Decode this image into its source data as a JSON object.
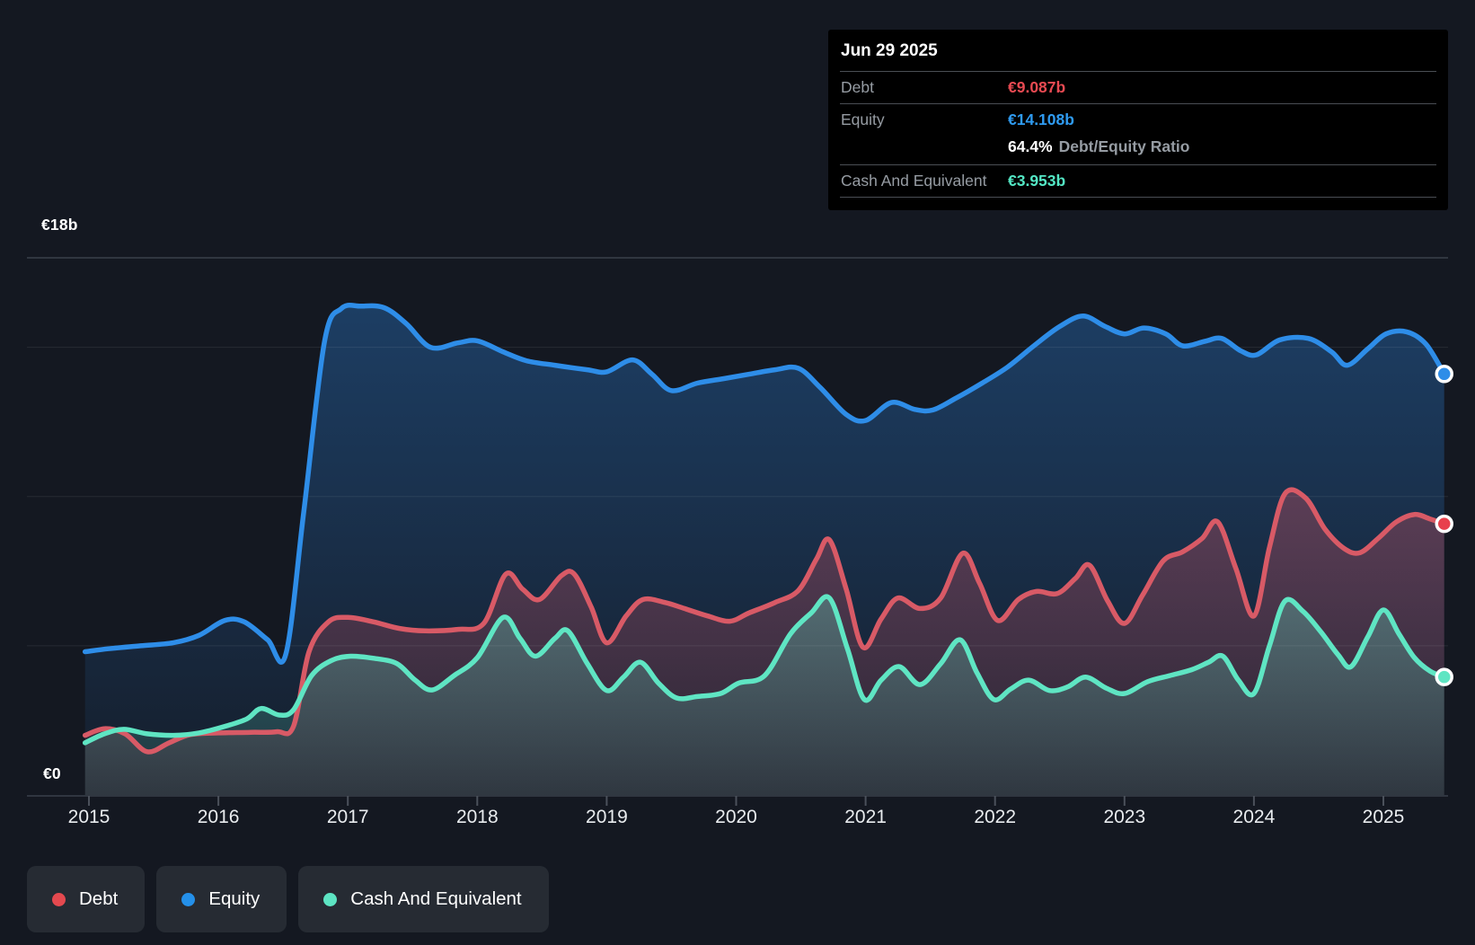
{
  "axis": {
    "y_top_label": "€18b",
    "y_zero_label": "€0",
    "x_ticks": [
      "2015",
      "2016",
      "2017",
      "2018",
      "2019",
      "2020",
      "2021",
      "2022",
      "2023",
      "2024",
      "2025"
    ]
  },
  "tooltip": {
    "date": "Jun 29 2025",
    "rows": [
      {
        "label": "Debt",
        "value": "€9.087b",
        "color": "#e84a52"
      },
      {
        "label": "Equity",
        "value": "€14.108b",
        "color": "#2f9bf1"
      }
    ],
    "ratio": {
      "value": "64.4%",
      "label": "Debt/Equity Ratio"
    },
    "cash_row": {
      "label": "Cash And Equivalent",
      "value": "€3.953b",
      "color": "#53e6c4"
    }
  },
  "legend": [
    {
      "label": "Debt",
      "color": "#e4494f"
    },
    {
      "label": "Equity",
      "color": "#2490ea"
    },
    {
      "label": "Cash And Equivalent",
      "color": "#5de4c3"
    }
  ],
  "colors": {
    "background": "#141821",
    "gridline_faint": "rgba(255,255,255,0.08)",
    "gridline_strong": "#3a414b",
    "tick": "#4b515b"
  },
  "chart_data": {
    "type": "area",
    "title": "",
    "xlabel": "",
    "ylabel": "",
    "x_domain": [
      2014.97,
      2025.47
    ],
    "y_domain": [
      0,
      18
    ],
    "y_unit": "billions EUR",
    "y_gridlines": [
      5,
      10,
      15
    ],
    "y_top_gridline": 18,
    "grid": true,
    "legend_position": "bottom-left",
    "series": [
      {
        "name": "Equity",
        "color": "#2e8de8",
        "point_color": "#2e8de8",
        "fill_top": "rgba(45,135,228,0.34)",
        "fill_bottom": "rgba(45,135,228,0.05)",
        "end_value": 14.108,
        "points": [
          [
            2014.97,
            4.8
          ],
          [
            2015.15,
            4.9
          ],
          [
            2015.4,
            5.0
          ],
          [
            2015.65,
            5.1
          ],
          [
            2015.85,
            5.35
          ],
          [
            2016.05,
            5.85
          ],
          [
            2016.2,
            5.8
          ],
          [
            2016.38,
            5.2
          ],
          [
            2016.52,
            4.7
          ],
          [
            2016.66,
            9.5
          ],
          [
            2016.82,
            15.2
          ],
          [
            2016.95,
            16.3
          ],
          [
            2017.1,
            16.38
          ],
          [
            2017.28,
            16.33
          ],
          [
            2017.45,
            15.8
          ],
          [
            2017.64,
            15.0
          ],
          [
            2017.85,
            15.15
          ],
          [
            2018.0,
            15.22
          ],
          [
            2018.2,
            14.85
          ],
          [
            2018.38,
            14.55
          ],
          [
            2018.6,
            14.4
          ],
          [
            2018.85,
            14.25
          ],
          [
            2019.0,
            14.18
          ],
          [
            2019.2,
            14.58
          ],
          [
            2019.35,
            14.1
          ],
          [
            2019.5,
            13.55
          ],
          [
            2019.7,
            13.8
          ],
          [
            2019.9,
            13.95
          ],
          [
            2020.1,
            14.1
          ],
          [
            2020.3,
            14.25
          ],
          [
            2020.48,
            14.3
          ],
          [
            2020.65,
            13.65
          ],
          [
            2020.85,
            12.75
          ],
          [
            2021.0,
            12.55
          ],
          [
            2021.2,
            13.15
          ],
          [
            2021.38,
            12.92
          ],
          [
            2021.52,
            12.9
          ],
          [
            2021.7,
            13.3
          ],
          [
            2021.9,
            13.8
          ],
          [
            2022.1,
            14.35
          ],
          [
            2022.3,
            15.05
          ],
          [
            2022.5,
            15.7
          ],
          [
            2022.68,
            16.05
          ],
          [
            2022.85,
            15.7
          ],
          [
            2023.0,
            15.45
          ],
          [
            2023.15,
            15.65
          ],
          [
            2023.32,
            15.45
          ],
          [
            2023.45,
            15.05
          ],
          [
            2023.62,
            15.2
          ],
          [
            2023.75,
            15.3
          ],
          [
            2023.9,
            14.88
          ],
          [
            2024.02,
            14.75
          ],
          [
            2024.2,
            15.25
          ],
          [
            2024.42,
            15.3
          ],
          [
            2024.6,
            14.85
          ],
          [
            2024.72,
            14.4
          ],
          [
            2024.88,
            14.95
          ],
          [
            2025.02,
            15.45
          ],
          [
            2025.18,
            15.52
          ],
          [
            2025.33,
            15.1
          ],
          [
            2025.47,
            14.108
          ]
        ]
      },
      {
        "name": "Debt",
        "color": "#d85a66",
        "point_color": "#e8404d",
        "fill_top": "rgba(220,85,100,0.34)",
        "fill_bottom": "rgba(220,85,100,0.10)",
        "end_value": 9.087,
        "points": [
          [
            2014.97,
            2.0
          ],
          [
            2015.12,
            2.22
          ],
          [
            2015.28,
            2.05
          ],
          [
            2015.45,
            1.45
          ],
          [
            2015.62,
            1.75
          ],
          [
            2015.78,
            2.02
          ],
          [
            2016.0,
            2.08
          ],
          [
            2016.25,
            2.1
          ],
          [
            2016.45,
            2.12
          ],
          [
            2016.58,
            2.3
          ],
          [
            2016.7,
            4.8
          ],
          [
            2016.85,
            5.8
          ],
          [
            2017.0,
            5.95
          ],
          [
            2017.2,
            5.8
          ],
          [
            2017.4,
            5.58
          ],
          [
            2017.6,
            5.5
          ],
          [
            2017.85,
            5.55
          ],
          [
            2018.05,
            5.75
          ],
          [
            2018.22,
            7.4
          ],
          [
            2018.35,
            6.9
          ],
          [
            2018.48,
            6.55
          ],
          [
            2018.65,
            7.35
          ],
          [
            2018.75,
            7.4
          ],
          [
            2018.88,
            6.3
          ],
          [
            2019.0,
            5.1
          ],
          [
            2019.15,
            6.0
          ],
          [
            2019.28,
            6.55
          ],
          [
            2019.45,
            6.45
          ],
          [
            2019.6,
            6.25
          ],
          [
            2019.78,
            6.0
          ],
          [
            2019.95,
            5.82
          ],
          [
            2020.1,
            6.1
          ],
          [
            2020.3,
            6.45
          ],
          [
            2020.48,
            6.85
          ],
          [
            2020.62,
            7.9
          ],
          [
            2020.72,
            8.55
          ],
          [
            2020.85,
            6.9
          ],
          [
            2020.98,
            4.95
          ],
          [
            2021.12,
            5.9
          ],
          [
            2021.25,
            6.6
          ],
          [
            2021.42,
            6.25
          ],
          [
            2021.58,
            6.6
          ],
          [
            2021.75,
            8.1
          ],
          [
            2021.88,
            7.1
          ],
          [
            2022.02,
            5.85
          ],
          [
            2022.18,
            6.55
          ],
          [
            2022.32,
            6.82
          ],
          [
            2022.48,
            6.75
          ],
          [
            2022.62,
            7.25
          ],
          [
            2022.73,
            7.7
          ],
          [
            2022.87,
            6.5
          ],
          [
            2023.0,
            5.75
          ],
          [
            2023.14,
            6.7
          ],
          [
            2023.3,
            7.85
          ],
          [
            2023.45,
            8.15
          ],
          [
            2023.6,
            8.6
          ],
          [
            2023.72,
            9.15
          ],
          [
            2023.86,
            7.6
          ],
          [
            2024.0,
            6.0
          ],
          [
            2024.12,
            8.3
          ],
          [
            2024.24,
            10.1
          ],
          [
            2024.4,
            9.95
          ],
          [
            2024.55,
            8.9
          ],
          [
            2024.7,
            8.25
          ],
          [
            2024.82,
            8.12
          ],
          [
            2024.96,
            8.6
          ],
          [
            2025.1,
            9.15
          ],
          [
            2025.24,
            9.4
          ],
          [
            2025.36,
            9.25
          ],
          [
            2025.47,
            9.087
          ]
        ]
      },
      {
        "name": "Cash And Equivalent",
        "color": "#5fe5c3",
        "point_color": "#5fe5c3",
        "fill_top": "rgba(100,232,202,0.30)",
        "fill_bottom": "rgba(100,232,202,0.10)",
        "end_value": 3.953,
        "points": [
          [
            2014.97,
            1.75
          ],
          [
            2015.12,
            2.05
          ],
          [
            2015.27,
            2.2
          ],
          [
            2015.45,
            2.05
          ],
          [
            2015.65,
            2.0
          ],
          [
            2015.85,
            2.08
          ],
          [
            2016.05,
            2.3
          ],
          [
            2016.22,
            2.55
          ],
          [
            2016.33,
            2.9
          ],
          [
            2016.47,
            2.68
          ],
          [
            2016.58,
            2.85
          ],
          [
            2016.72,
            4.0
          ],
          [
            2016.87,
            4.5
          ],
          [
            2017.02,
            4.65
          ],
          [
            2017.2,
            4.58
          ],
          [
            2017.38,
            4.4
          ],
          [
            2017.52,
            3.85
          ],
          [
            2017.65,
            3.52
          ],
          [
            2017.82,
            4.0
          ],
          [
            2018.0,
            4.6
          ],
          [
            2018.2,
            5.95
          ],
          [
            2018.33,
            5.25
          ],
          [
            2018.45,
            4.65
          ],
          [
            2018.6,
            5.25
          ],
          [
            2018.7,
            5.5
          ],
          [
            2018.85,
            4.4
          ],
          [
            2019.0,
            3.5
          ],
          [
            2019.13,
            3.95
          ],
          [
            2019.26,
            4.45
          ],
          [
            2019.4,
            3.75
          ],
          [
            2019.54,
            3.25
          ],
          [
            2019.7,
            3.3
          ],
          [
            2019.88,
            3.4
          ],
          [
            2020.02,
            3.75
          ],
          [
            2020.22,
            4.0
          ],
          [
            2020.42,
            5.4
          ],
          [
            2020.58,
            6.1
          ],
          [
            2020.72,
            6.6
          ],
          [
            2020.86,
            4.9
          ],
          [
            2020.99,
            3.2
          ],
          [
            2021.12,
            3.85
          ],
          [
            2021.26,
            4.3
          ],
          [
            2021.42,
            3.7
          ],
          [
            2021.58,
            4.4
          ],
          [
            2021.73,
            5.2
          ],
          [
            2021.86,
            4.1
          ],
          [
            2021.99,
            3.2
          ],
          [
            2022.12,
            3.55
          ],
          [
            2022.26,
            3.85
          ],
          [
            2022.42,
            3.5
          ],
          [
            2022.56,
            3.62
          ],
          [
            2022.7,
            3.95
          ],
          [
            2022.86,
            3.58
          ],
          [
            2023.0,
            3.4
          ],
          [
            2023.18,
            3.8
          ],
          [
            2023.35,
            4.0
          ],
          [
            2023.52,
            4.2
          ],
          [
            2023.65,
            4.45
          ],
          [
            2023.76,
            4.65
          ],
          [
            2023.88,
            3.85
          ],
          [
            2024.0,
            3.4
          ],
          [
            2024.12,
            5.0
          ],
          [
            2024.24,
            6.5
          ],
          [
            2024.38,
            6.15
          ],
          [
            2024.52,
            5.45
          ],
          [
            2024.65,
            4.7
          ],
          [
            2024.75,
            4.3
          ],
          [
            2024.88,
            5.3
          ],
          [
            2025.0,
            6.2
          ],
          [
            2025.12,
            5.4
          ],
          [
            2025.24,
            4.6
          ],
          [
            2025.36,
            4.15
          ],
          [
            2025.47,
            3.953
          ]
        ]
      }
    ]
  }
}
